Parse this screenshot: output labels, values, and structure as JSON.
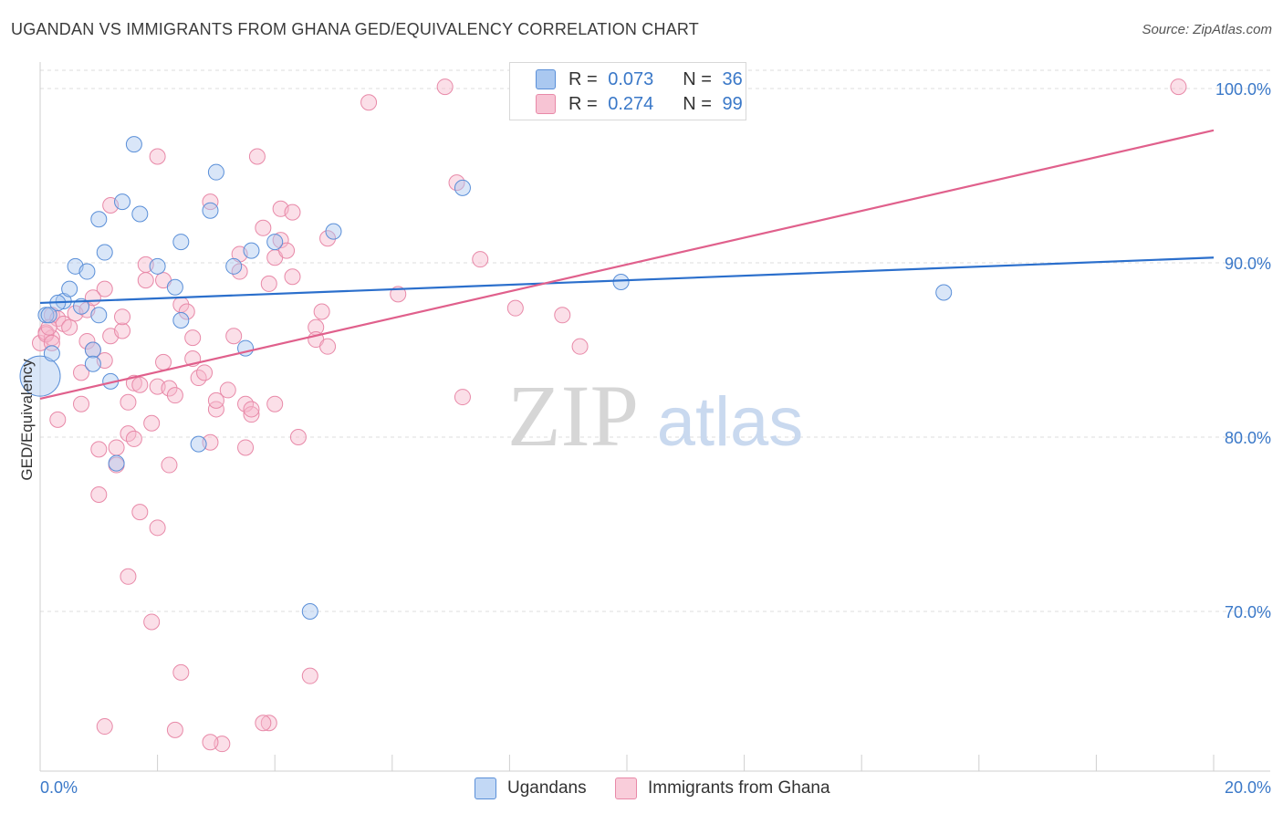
{
  "title": "UGANDAN VS IMMIGRANTS FROM GHANA GED/EQUIVALENCY CORRELATION CHART",
  "source": "Source: ZipAtlas.com",
  "watermark": {
    "zip": "ZIP",
    "atlas": "atlas"
  },
  "legend_top": {
    "rows": [
      {
        "r_label": "R =",
        "r_value": "0.073",
        "n_label": "N =",
        "n_value": "36"
      },
      {
        "r_label": "R =",
        "r_value": "0.274",
        "n_label": "N =",
        "n_value": "99"
      }
    ]
  },
  "legend_bottom": {
    "series1": "Ugandans",
    "series2": "Immigrants from Ghana"
  },
  "colors": {
    "blue_fill": "#aac8f0",
    "blue_stroke": "#5a8fd8",
    "blue_line": "#2b6fcc",
    "pink_fill": "#f7b9cc",
    "pink_stroke": "#e889a8",
    "pink_line": "#e0608c",
    "tick_label": "#3a78c8",
    "grid": "#dcdcdc"
  },
  "chart_data": {
    "type": "scatter",
    "title": "UGANDAN VS IMMIGRANTS FROM GHANA GED/EQUIVALENCY CORRELATION CHART",
    "xlabel": "",
    "ylabel": "GED/Equivalency",
    "xlim": [
      0,
      20
    ],
    "ylim": [
      60,
      101
    ],
    "x_tick_labels": [
      "0.0%",
      "20.0%"
    ],
    "y_ticks": [
      70,
      80,
      90,
      100
    ],
    "y_tick_labels": [
      "70.0%",
      "80.0%",
      "90.0%",
      "100.0%"
    ],
    "grid": true,
    "legend_position": "top-center",
    "series": [
      {
        "name": "Ugandans",
        "r": 0.073,
        "n": 36,
        "trend": [
          [
            0,
            87.7
          ],
          [
            20,
            90.3
          ]
        ],
        "points": [
          [
            0.0,
            83.5
          ],
          [
            0.1,
            87.0
          ],
          [
            0.2,
            84.8
          ],
          [
            0.4,
            87.8
          ],
          [
            0.5,
            88.5
          ],
          [
            0.6,
            89.8
          ],
          [
            0.7,
            87.5
          ],
          [
            0.8,
            89.5
          ],
          [
            0.9,
            85.0
          ],
          [
            0.9,
            84.2
          ],
          [
            1.0,
            92.5
          ],
          [
            1.0,
            87.0
          ],
          [
            1.1,
            90.6
          ],
          [
            1.2,
            83.2
          ],
          [
            1.3,
            78.5
          ],
          [
            1.4,
            93.5
          ],
          [
            1.6,
            96.8
          ],
          [
            1.7,
            92.8
          ],
          [
            2.0,
            89.8
          ],
          [
            2.3,
            88.6
          ],
          [
            2.4,
            91.2
          ],
          [
            2.4,
            86.7
          ],
          [
            2.7,
            79.6
          ],
          [
            2.9,
            93.0
          ],
          [
            3.0,
            95.2
          ],
          [
            3.3,
            89.8
          ],
          [
            3.5,
            85.1
          ],
          [
            3.6,
            90.7
          ],
          [
            4.0,
            91.2
          ],
          [
            4.6,
            70.0
          ],
          [
            5.0,
            91.8
          ],
          [
            7.2,
            94.3
          ],
          [
            9.9,
            88.9
          ],
          [
            15.4,
            88.3
          ],
          [
            0.15,
            87.0
          ],
          [
            0.3,
            87.7
          ]
        ]
      },
      {
        "name": "Immigrants from Ghana",
        "r": 0.274,
        "n": 99,
        "trend": [
          [
            0,
            82.2
          ],
          [
            20,
            97.6
          ]
        ],
        "points": [
          [
            0.0,
            85.4
          ],
          [
            0.1,
            86.0
          ],
          [
            0.2,
            85.7
          ],
          [
            0.2,
            87.0
          ],
          [
            0.3,
            86.8
          ],
          [
            0.3,
            81.0
          ],
          [
            0.4,
            86.5
          ],
          [
            0.5,
            86.3
          ],
          [
            0.6,
            87.1
          ],
          [
            0.7,
            81.9
          ],
          [
            0.7,
            83.7
          ],
          [
            0.8,
            87.3
          ],
          [
            0.8,
            85.5
          ],
          [
            0.9,
            85.0
          ],
          [
            1.0,
            76.7
          ],
          [
            1.0,
            79.3
          ],
          [
            1.1,
            84.4
          ],
          [
            1.1,
            88.5
          ],
          [
            1.2,
            85.8
          ],
          [
            1.2,
            93.3
          ],
          [
            1.3,
            78.4
          ],
          [
            1.3,
            79.4
          ],
          [
            1.4,
            86.1
          ],
          [
            1.4,
            86.9
          ],
          [
            1.5,
            80.2
          ],
          [
            1.5,
            82.0
          ],
          [
            1.5,
            72.0
          ],
          [
            1.6,
            79.9
          ],
          [
            1.6,
            83.1
          ],
          [
            1.7,
            75.7
          ],
          [
            1.7,
            83.0
          ],
          [
            1.8,
            89.0
          ],
          [
            1.8,
            89.9
          ],
          [
            1.9,
            69.4
          ],
          [
            1.9,
            80.8
          ],
          [
            2.0,
            82.9
          ],
          [
            2.0,
            74.8
          ],
          [
            2.0,
            96.1
          ],
          [
            2.1,
            89.0
          ],
          [
            2.1,
            84.3
          ],
          [
            2.2,
            82.8
          ],
          [
            2.2,
            78.4
          ],
          [
            2.3,
            82.4
          ],
          [
            2.4,
            66.5
          ],
          [
            2.4,
            87.6
          ],
          [
            2.5,
            87.2
          ],
          [
            2.6,
            85.7
          ],
          [
            2.6,
            84.5
          ],
          [
            2.7,
            83.4
          ],
          [
            2.8,
            83.7
          ],
          [
            2.9,
            79.7
          ],
          [
            2.9,
            93.5
          ],
          [
            3.0,
            81.6
          ],
          [
            3.0,
            82.1
          ],
          [
            3.1,
            62.4
          ],
          [
            3.2,
            82.7
          ],
          [
            3.3,
            85.8
          ],
          [
            3.4,
            90.5
          ],
          [
            3.4,
            89.5
          ],
          [
            3.5,
            81.9
          ],
          [
            3.5,
            79.4
          ],
          [
            3.6,
            81.3
          ],
          [
            3.6,
            81.6
          ],
          [
            3.7,
            96.1
          ],
          [
            3.8,
            92.0
          ],
          [
            3.9,
            88.8
          ],
          [
            3.9,
            63.6
          ],
          [
            4.0,
            81.9
          ],
          [
            4.0,
            90.3
          ],
          [
            4.1,
            91.3
          ],
          [
            4.1,
            93.1
          ],
          [
            4.2,
            90.7
          ],
          [
            4.3,
            92.9
          ],
          [
            4.3,
            89.2
          ],
          [
            4.4,
            80.0
          ],
          [
            4.6,
            66.3
          ],
          [
            4.7,
            86.3
          ],
          [
            4.7,
            85.6
          ],
          [
            4.8,
            87.2
          ],
          [
            4.9,
            85.2
          ],
          [
            4.9,
            91.4
          ],
          [
            5.6,
            99.2
          ],
          [
            6.1,
            88.2
          ],
          [
            6.9,
            100.1
          ],
          [
            7.1,
            94.6
          ],
          [
            7.2,
            82.3
          ],
          [
            7.5,
            90.2
          ],
          [
            8.1,
            87.4
          ],
          [
            8.9,
            87.0
          ],
          [
            9.2,
            85.2
          ],
          [
            19.4,
            100.1
          ],
          [
            0.1,
            85.9
          ],
          [
            0.15,
            86.3
          ],
          [
            1.1,
            63.4
          ],
          [
            2.3,
            63.2
          ],
          [
            3.8,
            63.6
          ],
          [
            0.9,
            88.0
          ],
          [
            2.9,
            62.5
          ],
          [
            0.2,
            85.4
          ]
        ]
      }
    ]
  }
}
